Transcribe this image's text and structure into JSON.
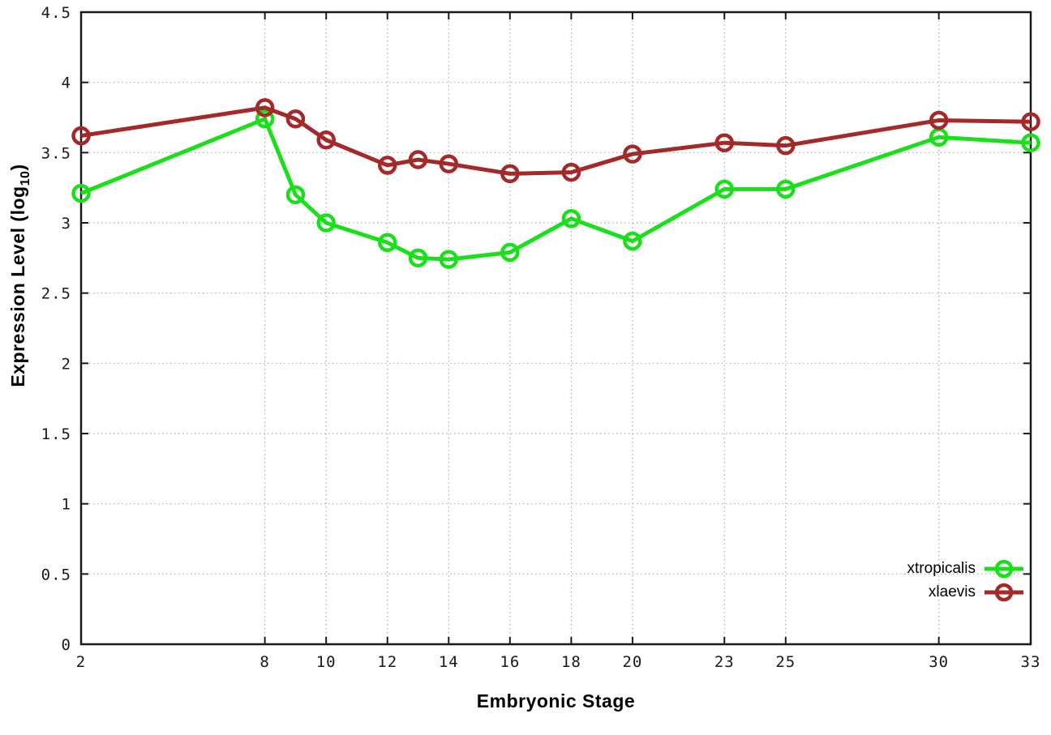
{
  "chart_data": {
    "type": "line",
    "title": "",
    "xlabel": "Embryonic Stage",
    "ylabel": {
      "prefix": "Expression Level (log",
      "subscript": "10",
      "suffix": ")"
    },
    "xlim": [
      2,
      33
    ],
    "ylim": [
      0,
      4.5
    ],
    "xticks": [
      2,
      8,
      10,
      12,
      14,
      16,
      18,
      20,
      23,
      25,
      30,
      33
    ],
    "yticks": [
      "0",
      "0.5",
      "1",
      "1.5",
      "2",
      "2.5",
      "3",
      "3.5",
      "4",
      "4.5"
    ],
    "grid": "dotted",
    "legend_position": "bottom-right",
    "categories": [
      2,
      8,
      9,
      10,
      12,
      13,
      14,
      16,
      18,
      20,
      23,
      25,
      30,
      33
    ],
    "series": [
      {
        "name": "xtropicalis",
        "color": "#1cdf1c",
        "x": [
          2,
          8,
          9,
          10,
          12,
          13,
          14,
          16,
          18,
          20,
          23,
          25,
          30,
          33
        ],
        "values": [
          3.21,
          3.74,
          3.2,
          3.0,
          2.86,
          2.75,
          2.74,
          2.79,
          3.03,
          2.87,
          3.24,
          3.24,
          3.61,
          3.57
        ]
      },
      {
        "name": "xlaevis",
        "color": "#a42a2a",
        "x": [
          2,
          8,
          9,
          10,
          12,
          13,
          14,
          16,
          18,
          20,
          23,
          25,
          30,
          33
        ],
        "values": [
          3.62,
          3.82,
          3.74,
          3.59,
          3.41,
          3.45,
          3.42,
          3.35,
          3.36,
          3.49,
          3.57,
          3.55,
          3.73,
          3.72
        ]
      }
    ],
    "style": {
      "border_color": "#1a1a1a",
      "grid_color": "#aaaaaa",
      "tick_label_color": "#1a1a1a",
      "background": "#ffffff"
    }
  }
}
